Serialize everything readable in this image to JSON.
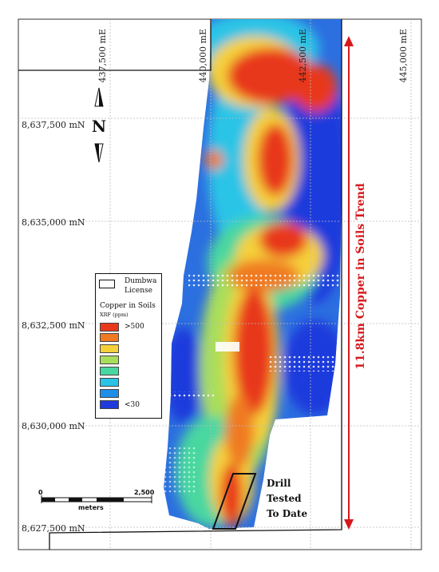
{
  "map": {
    "eastings": [
      "437,500 mE",
      "440,000 mE",
      "442,500 mE",
      "445,000 mE"
    ],
    "northings": [
      "8,637,500 mN",
      "8,635,000 mN",
      "8,632,500 mN",
      "8,630,000 mN",
      "8,627,500 mN"
    ],
    "north_arrow": "N",
    "trend_label": "11.8km Copper in Soils Trend",
    "drill_label": [
      "Drill",
      "Tested",
      "To Date"
    ]
  },
  "legend": {
    "license_label": "Dumbwa License",
    "title": "Copper in Soils",
    "subtitle": "XRF (ppm)",
    "high_label": ">500",
    "low_label": "<30",
    "colors": [
      "#e8391d",
      "#f07a22",
      "#f5d03a",
      "#a8de5b",
      "#48d7a0",
      "#29c4e6",
      "#1f8ee8",
      "#1f3bdc"
    ]
  },
  "scale": {
    "start": "0",
    "end": "2,500",
    "unit": "meters"
  },
  "colors": {
    "trend_arrow": "#d7191c",
    "grid": "#bbbbbb"
  }
}
